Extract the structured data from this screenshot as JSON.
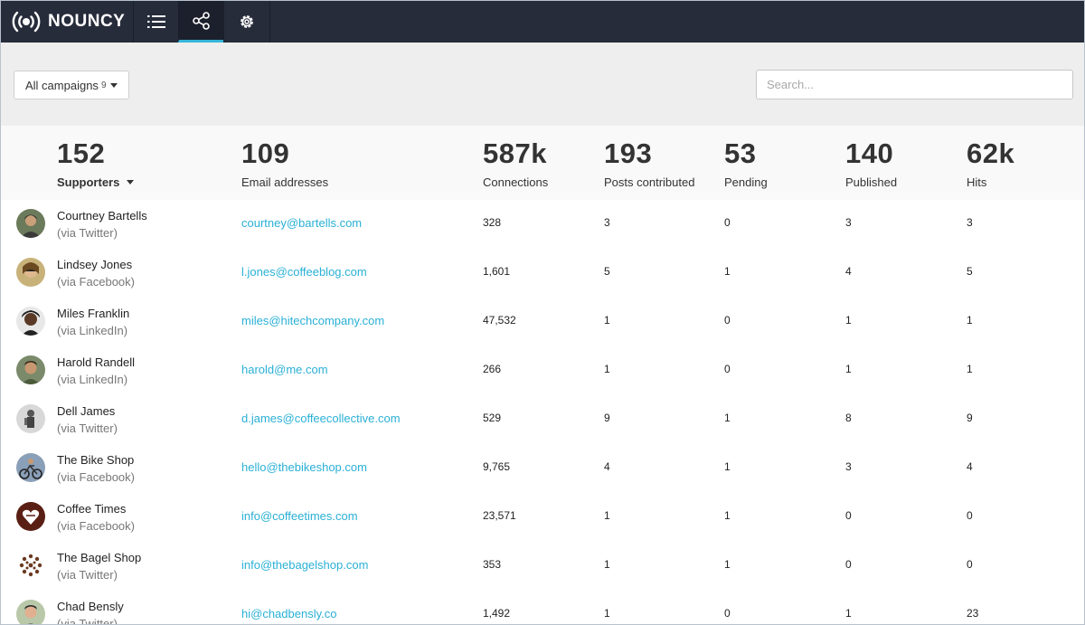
{
  "app": {
    "logo_text": "NOUNCY"
  },
  "nav": [
    {
      "name": "list-icon",
      "active": false
    },
    {
      "name": "share-icon",
      "active": true
    },
    {
      "name": "gear-icon",
      "active": false
    }
  ],
  "filter": {
    "campaigns_label": "All campaigns",
    "campaigns_count": "9",
    "search_placeholder": "Search..."
  },
  "stats": [
    {
      "value": "152",
      "label": "Supporters"
    },
    {
      "value": "109",
      "label": "Email addresses"
    },
    {
      "value": "587k",
      "label": "Connections"
    },
    {
      "value": "193",
      "label": "Posts contributed"
    },
    {
      "value": "53",
      "label": "Pending"
    },
    {
      "value": "140",
      "label": "Published"
    },
    {
      "value": "62k",
      "label": "Hits"
    }
  ],
  "colors": {
    "nav_bg": "#272c3b",
    "accent": "#36b5d8",
    "link": "#2ab0d6"
  },
  "supporters": [
    {
      "name": "Courtney Bartells",
      "via": "(via Twitter)",
      "email": "courtney@bartells.com",
      "connections": "328",
      "posts": "3",
      "pending": "0",
      "published": "3",
      "hits": "3",
      "avatar": "photo-person"
    },
    {
      "name": "Lindsey Jones",
      "via": "(via Facebook)",
      "email": "l.jones@coffeeblog.com",
      "connections": "1,601",
      "posts": "5",
      "pending": "1",
      "published": "4",
      "hits": "5",
      "avatar": "photo-person"
    },
    {
      "name": "Miles Franklin",
      "via": "(via LinkedIn)",
      "email": "miles@hitechcompany.com",
      "connections": "47,532",
      "posts": "1",
      "pending": "0",
      "published": "1",
      "hits": "1",
      "avatar": "photo-person"
    },
    {
      "name": "Harold Randell",
      "via": "(via LinkedIn)",
      "email": "harold@me.com",
      "connections": "266",
      "posts": "1",
      "pending": "0",
      "published": "1",
      "hits": "1",
      "avatar": "photo-person"
    },
    {
      "name": "Dell James",
      "via": "(via Twitter)",
      "email": "d.james@coffeecollective.com",
      "connections": "529",
      "posts": "9",
      "pending": "1",
      "published": "8",
      "hits": "9",
      "avatar": "photo-person"
    },
    {
      "name": "The Bike Shop",
      "via": "(via Facebook)",
      "email": "hello@thebikeshop.com",
      "connections": "9,765",
      "posts": "4",
      "pending": "1",
      "published": "3",
      "hits": "4",
      "avatar": "photo-bike"
    },
    {
      "name": "Coffee Times",
      "via": "(via Facebook)",
      "email": "info@coffeetimes.com",
      "connections": "23,571",
      "posts": "1",
      "pending": "1",
      "published": "0",
      "hits": "0",
      "avatar": "logo-heart"
    },
    {
      "name": "The Bagel Shop",
      "via": "(via Twitter)",
      "email": "info@thebagelshop.com",
      "connections": "353",
      "posts": "1",
      "pending": "1",
      "published": "0",
      "hits": "0",
      "avatar": "logo-pattern"
    },
    {
      "name": "Chad Bensly",
      "via": "(via Twitter)",
      "email": "hi@chadbensly.co",
      "connections": "1,492",
      "posts": "1",
      "pending": "0",
      "published": "1",
      "hits": "23",
      "avatar": "photo-person"
    }
  ]
}
